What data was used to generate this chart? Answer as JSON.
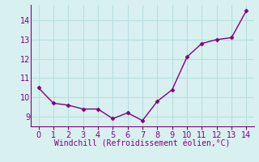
{
  "x": [
    0,
    1,
    2,
    3,
    4,
    5,
    6,
    7,
    8,
    9,
    10,
    11,
    12,
    13,
    14
  ],
  "y": [
    10.5,
    9.7,
    9.6,
    9.4,
    9.4,
    8.9,
    9.2,
    8.8,
    9.8,
    10.4,
    12.1,
    12.8,
    13.0,
    13.1,
    14.5
  ],
  "line_color": "#800080",
  "marker": "D",
  "marker_size": 2.5,
  "line_width": 1.0,
  "xlabel": "Windchill (Refroidissement éolien,°C)",
  "xlabel_color": "#800080",
  "xlabel_fontsize": 7,
  "tick_color": "#800080",
  "tick_fontsize": 7,
  "background_color": "#d8f0f0",
  "grid_color": "#b8dede",
  "xlim": [
    -0.5,
    14.5
  ],
  "ylim": [
    8.5,
    14.8
  ],
  "yticks": [
    9,
    10,
    11,
    12,
    13,
    14
  ],
  "xticks": [
    0,
    1,
    2,
    3,
    4,
    5,
    6,
    7,
    8,
    9,
    10,
    11,
    12,
    13,
    14
  ]
}
